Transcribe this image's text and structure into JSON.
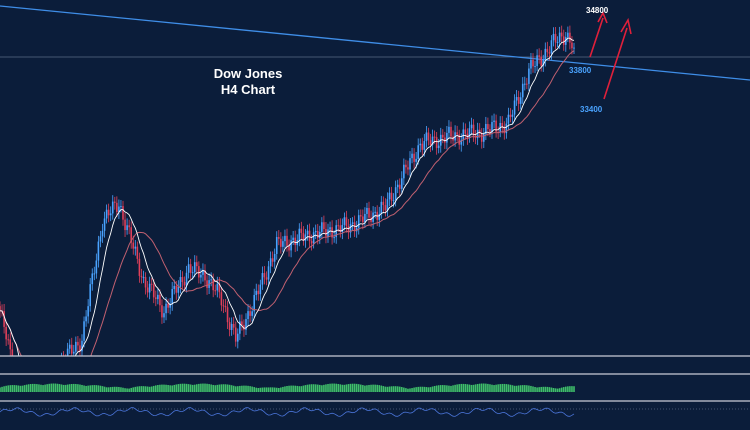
{
  "chart_data": {
    "type": "candlestick",
    "title": "Dow Jones",
    "subtitle": "H4 Chart",
    "y_tick_labels": [
      "34800",
      "33800",
      "33400"
    ],
    "levels": [
      {
        "label": "34800",
        "value": 34800,
        "color": "#ffffff"
      },
      {
        "label": "33800",
        "value": 33800,
        "color": "#4aa3ff"
      },
      {
        "label": "33400",
        "value": 33400,
        "color": "#4aa3ff"
      }
    ],
    "anchors": [
      {
        "i": 0,
        "p": 32720
      },
      {
        "i": 10,
        "p": 32350
      },
      {
        "i": 20,
        "p": 32280
      },
      {
        "i": 30,
        "p": 32500
      },
      {
        "i": 40,
        "p": 32600
      },
      {
        "i": 50,
        "p": 33100
      },
      {
        "i": 58,
        "p": 33180
      },
      {
        "i": 70,
        "p": 32850
      },
      {
        "i": 80,
        "p": 32720
      },
      {
        "i": 92,
        "p": 32900
      },
      {
        "i": 100,
        "p": 32870
      },
      {
        "i": 108,
        "p": 32770
      },
      {
        "i": 115,
        "p": 32600
      },
      {
        "i": 125,
        "p": 32780
      },
      {
        "i": 135,
        "p": 33000
      },
      {
        "i": 150,
        "p": 33040
      },
      {
        "i": 170,
        "p": 33080
      },
      {
        "i": 188,
        "p": 33160
      },
      {
        "i": 205,
        "p": 33430
      },
      {
        "i": 218,
        "p": 33460
      },
      {
        "i": 235,
        "p": 33480
      },
      {
        "i": 248,
        "p": 33520
      },
      {
        "i": 258,
        "p": 33740
      },
      {
        "i": 270,
        "p": 33860
      },
      {
        "i": 276,
        "p": 33900
      },
      {
        "i": 280,
        "p": 33840
      }
    ],
    "colors": {
      "background": "#0b1d3a",
      "bull": "#4aa3ff",
      "bear": "#e0405a",
      "ma_fast": "#ffffff",
      "ma_slow": "#c06070",
      "trendline": "#3f8ee8",
      "arrow": "#e0203a",
      "hist_pos": "#3fbf6a",
      "separator": "#c9ccd6"
    }
  }
}
